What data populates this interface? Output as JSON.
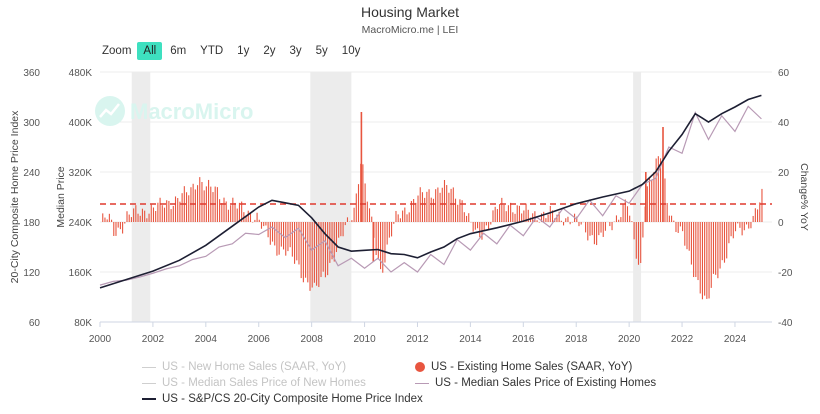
{
  "header": {
    "title": "Housing Market",
    "subtitle": "MacroMicro.me | LEI"
  },
  "watermark": "MacroMicro",
  "zoom": {
    "label": "Zoom",
    "buttons": [
      "All",
      "6m",
      "YTD",
      "1y",
      "2y",
      "3y",
      "5y",
      "10y"
    ],
    "active": "All"
  },
  "chart_data": {
    "type": "bar+line",
    "x_ticks": [
      "2000",
      "2002",
      "2004",
      "2006",
      "2008",
      "2010",
      "2012",
      "2014",
      "2016",
      "2018",
      "2020",
      "2022",
      "2024"
    ],
    "x_range": [
      2000,
      2025.4
    ],
    "axes": {
      "left_outer": {
        "label": "20-City Composite Home Price Index",
        "ticks": [
          "360",
          "300",
          "240",
          "180",
          "120",
          "60"
        ],
        "range": [
          60,
          360
        ]
      },
      "left_inner": {
        "label": "Median Price",
        "ticks": [
          "480K",
          "400K",
          "320K",
          "240K",
          "160K",
          "80K"
        ],
        "range": [
          80000,
          480000
        ]
      },
      "right": {
        "label": "Change% YoY",
        "ticks": [
          "60",
          "40",
          "20",
          "0",
          "-20",
          "-40"
        ],
        "range": [
          -40,
          60
        ]
      }
    },
    "reference_line": {
      "axis": "right",
      "value": 7.2,
      "style": "dashed",
      "color": "#e03a2e"
    },
    "recession_bands": [
      [
        2001.2,
        2001.9
      ],
      [
        2007.95,
        2009.5
      ],
      [
        2020.15,
        2020.45
      ]
    ],
    "series": [
      {
        "name": "US - New Home Sales (SAAR, YoY)",
        "visible": false,
        "color": "#bbbbbb"
      },
      {
        "name": "US - Existing Home Sales (SAAR, YoY)",
        "visible": true,
        "axis": "right",
        "render": "bar",
        "color": "#e8553f",
        "anchors": [
          [
            2000.0,
            0
          ],
          [
            2000.3,
            2
          ],
          [
            2000.5,
            -4
          ],
          [
            2000.8,
            -2
          ],
          [
            2001.0,
            2
          ],
          [
            2001.4,
            4
          ],
          [
            2001.8,
            5
          ],
          [
            2002.2,
            6
          ],
          [
            2002.6,
            8
          ],
          [
            2003.0,
            10
          ],
          [
            2003.4,
            12
          ],
          [
            2003.7,
            18
          ],
          [
            2004.0,
            14
          ],
          [
            2004.4,
            12
          ],
          [
            2004.8,
            8
          ],
          [
            2005.2,
            6
          ],
          [
            2005.6,
            4
          ],
          [
            2005.9,
            2
          ],
          [
            2006.2,
            -4
          ],
          [
            2006.6,
            -10
          ],
          [
            2007.0,
            -12
          ],
          [
            2007.4,
            -16
          ],
          [
            2007.8,
            -24
          ],
          [
            2008.1,
            -28
          ],
          [
            2008.5,
            -20
          ],
          [
            2008.9,
            -12
          ],
          [
            2009.2,
            -4
          ],
          [
            2009.6,
            6
          ],
          [
            2009.85,
            26
          ],
          [
            2010.0,
            14
          ],
          [
            2010.2,
            2
          ],
          [
            2010.4,
            -10
          ],
          [
            2010.6,
            -20
          ],
          [
            2010.9,
            -8
          ],
          [
            2011.2,
            2
          ],
          [
            2011.6,
            6
          ],
          [
            2012.0,
            10
          ],
          [
            2012.5,
            12
          ],
          [
            2012.9,
            14
          ],
          [
            2013.3,
            12
          ],
          [
            2013.7,
            8
          ],
          [
            2014.0,
            -2
          ],
          [
            2014.3,
            -6
          ],
          [
            2014.7,
            0
          ],
          [
            2015.0,
            6
          ],
          [
            2015.5,
            7
          ],
          [
            2016.0,
            4
          ],
          [
            2016.5,
            3
          ],
          [
            2017.0,
            3
          ],
          [
            2017.5,
            2
          ],
          [
            2018.0,
            0
          ],
          [
            2018.4,
            -4
          ],
          [
            2018.8,
            -8
          ],
          [
            2019.1,
            -4
          ],
          [
            2019.5,
            2
          ],
          [
            2019.9,
            8
          ],
          [
            2020.2,
            -10
          ],
          [
            2020.4,
            -20
          ],
          [
            2020.6,
            12
          ],
          [
            2021.0,
            22
          ],
          [
            2021.2,
            28
          ],
          [
            2021.4,
            10
          ],
          [
            2021.7,
            -2
          ],
          [
            2022.0,
            -6
          ],
          [
            2022.4,
            -18
          ],
          [
            2022.7,
            -28
          ],
          [
            2022.9,
            -34
          ],
          [
            2023.2,
            -22
          ],
          [
            2023.6,
            -14
          ],
          [
            2024.0,
            -4
          ],
          [
            2024.4,
            -2
          ],
          [
            2024.7,
            2
          ],
          [
            2025.0,
            10
          ]
        ],
        "spikes": [
          [
            2009.85,
            44
          ],
          [
            2021.25,
            38
          ],
          [
            2020.6,
            20
          ],
          [
            2010.3,
            -16
          ]
        ]
      },
      {
        "name": "US - Median Sales Price of New Homes",
        "visible": false,
        "color": "#bbbbbb"
      },
      {
        "name": "US - Median Sales Price of Existing Homes",
        "visible": true,
        "axis": "left_inner",
        "render": "line",
        "color": "#b89ab5",
        "points": [
          [
            2000.0,
            139000
          ],
          [
            2000.5,
            145000
          ],
          [
            2001.0,
            147000
          ],
          [
            2001.5,
            152000
          ],
          [
            2002.0,
            158000
          ],
          [
            2002.5,
            165000
          ],
          [
            2003.0,
            170000
          ],
          [
            2003.5,
            180000
          ],
          [
            2004.0,
            185000
          ],
          [
            2004.5,
            200000
          ],
          [
            2005.0,
            205000
          ],
          [
            2005.5,
            222000
          ],
          [
            2006.0,
            220000
          ],
          [
            2006.5,
            232000
          ],
          [
            2007.0,
            215000
          ],
          [
            2007.5,
            230000
          ],
          [
            2008.0,
            195000
          ],
          [
            2008.5,
            210000
          ],
          [
            2009.0,
            170000
          ],
          [
            2009.5,
            182000
          ],
          [
            2010.0,
            166000
          ],
          [
            2010.5,
            182000
          ],
          [
            2011.0,
            160000
          ],
          [
            2011.5,
            175000
          ],
          [
            2012.0,
            160000
          ],
          [
            2012.5,
            188000
          ],
          [
            2013.0,
            172000
          ],
          [
            2013.5,
            212000
          ],
          [
            2014.0,
            195000
          ],
          [
            2014.5,
            222000
          ],
          [
            2015.0,
            205000
          ],
          [
            2015.5,
            235000
          ],
          [
            2016.0,
            218000
          ],
          [
            2016.5,
            248000
          ],
          [
            2017.0,
            232000
          ],
          [
            2017.5,
            262000
          ],
          [
            2018.0,
            245000
          ],
          [
            2018.5,
            275000
          ],
          [
            2019.0,
            250000
          ],
          [
            2019.5,
            282000
          ],
          [
            2020.0,
            270000
          ],
          [
            2020.5,
            300000
          ],
          [
            2021.0,
            310000
          ],
          [
            2021.5,
            360000
          ],
          [
            2022.0,
            350000
          ],
          [
            2022.5,
            415000
          ],
          [
            2023.0,
            372000
          ],
          [
            2023.5,
            410000
          ],
          [
            2024.0,
            385000
          ],
          [
            2024.5,
            425000
          ],
          [
            2025.0,
            405000
          ]
        ]
      },
      {
        "name": "US - S&P/CS 20-City Composite Home Price Index",
        "visible": true,
        "axis": "left_outer",
        "render": "line",
        "color": "#1d1f33",
        "points": [
          [
            2000.0,
            101
          ],
          [
            2001.0,
            111
          ],
          [
            2002.0,
            121
          ],
          [
            2003.0,
            134
          ],
          [
            2004.0,
            152
          ],
          [
            2005.0,
            175
          ],
          [
            2006.0,
            198
          ],
          [
            2006.5,
            206
          ],
          [
            2007.0,
            203
          ],
          [
            2007.5,
            200
          ],
          [
            2008.0,
            185
          ],
          [
            2008.5,
            166
          ],
          [
            2009.0,
            150
          ],
          [
            2009.5,
            145
          ],
          [
            2010.0,
            146
          ],
          [
            2010.5,
            147
          ],
          [
            2011.0,
            142
          ],
          [
            2011.5,
            141
          ],
          [
            2012.0,
            137
          ],
          [
            2012.5,
            144
          ],
          [
            2013.0,
            150
          ],
          [
            2013.5,
            160
          ],
          [
            2014.0,
            166
          ],
          [
            2015.0,
            173
          ],
          [
            2016.0,
            181
          ],
          [
            2017.0,
            191
          ],
          [
            2018.0,
            202
          ],
          [
            2019.0,
            210
          ],
          [
            2020.0,
            217
          ],
          [
            2020.5,
            225
          ],
          [
            2021.0,
            240
          ],
          [
            2021.5,
            265
          ],
          [
            2022.0,
            285
          ],
          [
            2022.5,
            310
          ],
          [
            2022.75,
            305
          ],
          [
            2023.0,
            300
          ],
          [
            2023.5,
            310
          ],
          [
            2024.0,
            318
          ],
          [
            2024.5,
            327
          ],
          [
            2025.0,
            332
          ]
        ]
      }
    ]
  },
  "legend": {
    "new_home_sales": "US - New Home Sales (SAAR, YoY)",
    "existing_home_sales": "US - Existing Home Sales (SAAR, YoY)",
    "new_home_price": "US - Median Sales Price of New Homes",
    "existing_home_price": "US - Median Sales Price of Existing Homes",
    "cs20": "US - S&P/CS 20-City Composite Home Price Index"
  },
  "colors": {
    "accent": "#3ee0c0",
    "bar": "#e8553f",
    "dash": "#e03a2e",
    "cs20": "#1d1f33",
    "existing_price": "#b89ab5",
    "band": "#ececec"
  }
}
